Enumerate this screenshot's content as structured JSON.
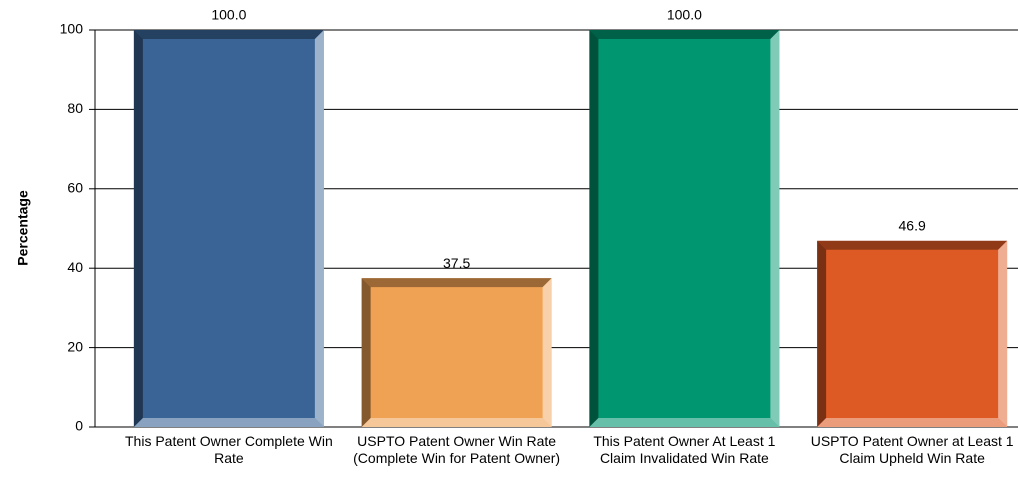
{
  "chart_data": {
    "type": "bar",
    "y_label": "Percentage",
    "categories": [
      "This Patent Owner Complete Win Rate",
      "USPTO Patent Owner Win Rate (Complete Win for Patent Owner)",
      "This Patent Owner At Least 1 Claim Invalidated Win Rate",
      "USPTO Patent Owner at Least 1 Claim Upheld Win Rate"
    ],
    "values": [
      100,
      37.5,
      100,
      46.9
    ],
    "value_labels": [
      "100.0",
      "37.5",
      "100.0",
      "46.9"
    ],
    "colors": [
      "#3a6496",
      "#f0a254",
      "#009670",
      "#de5a24"
    ],
    "ylim": [
      0,
      100
    ],
    "yticks": [
      0,
      20,
      40,
      60,
      80,
      100
    ],
    "grid": true
  }
}
